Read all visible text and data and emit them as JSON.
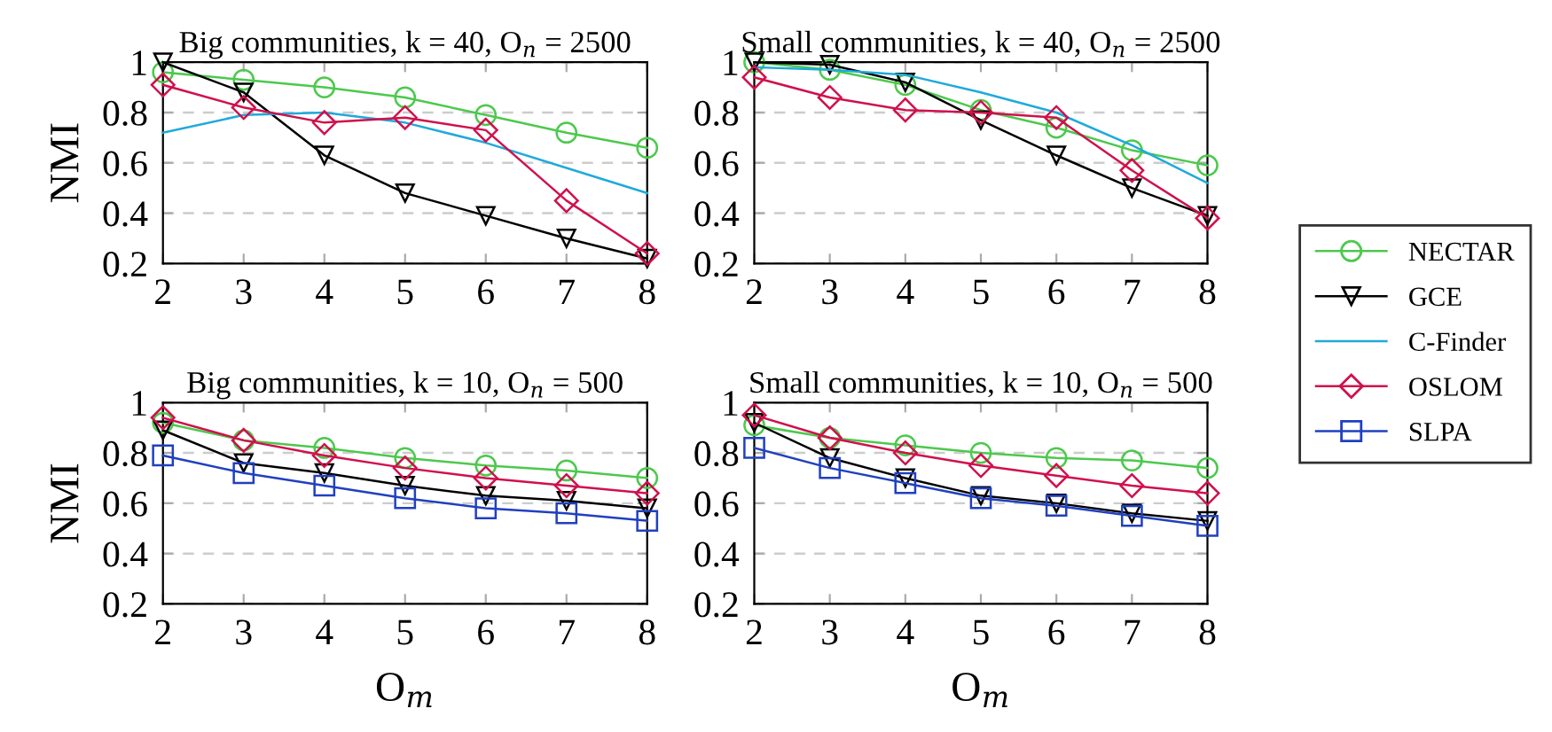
{
  "chart_data": [
    {
      "type": "line",
      "title": "Big communities, k = 40, O$_{n}$ = 2500",
      "ylabel": "NMI",
      "x": [
        2,
        3,
        4,
        5,
        6,
        7,
        8
      ],
      "xlim": [
        2,
        8
      ],
      "xticks": [
        2,
        3,
        4,
        5,
        6,
        7,
        8
      ],
      "ylim": [
        0.2,
        1
      ],
      "yticks": [
        0.2,
        0.4,
        0.6,
        0.8,
        1
      ],
      "grid": "y",
      "legend": "right",
      "series": [
        {
          "name": "NECTAR",
          "color": "#4cc94c",
          "marker": "circle",
          "values": [
            0.96,
            0.93,
            0.9,
            0.86,
            0.79,
            0.72,
            0.66
          ]
        },
        {
          "name": "GCE",
          "color": "#000000",
          "marker": "triangle",
          "values": [
            1.0,
            0.88,
            0.63,
            0.48,
            0.39,
            0.3,
            0.22
          ]
        },
        {
          "name": "C-Finder",
          "color": "#1eaadc",
          "marker": "none",
          "values": [
            0.72,
            0.79,
            0.8,
            0.76,
            0.68,
            0.58,
            0.48
          ]
        },
        {
          "name": "OSLOM",
          "color": "#d0104c",
          "marker": "diamond",
          "values": [
            0.91,
            0.82,
            0.76,
            0.78,
            0.73,
            0.45,
            0.24
          ]
        }
      ]
    },
    {
      "type": "line",
      "title": "Small communities, k = 40, O$_{n}$ = 2500",
      "x": [
        2,
        3,
        4,
        5,
        6,
        7,
        8
      ],
      "xlim": [
        2,
        8
      ],
      "xticks": [
        2,
        3,
        4,
        5,
        6,
        7,
        8
      ],
      "ylim": [
        0.2,
        1
      ],
      "yticks": [
        0.2,
        0.4,
        0.6,
        0.8,
        1
      ],
      "grid": "y",
      "legend": "right",
      "series": [
        {
          "name": "NECTAR",
          "color": "#4cc94c",
          "marker": "circle",
          "values": [
            1.0,
            0.97,
            0.91,
            0.81,
            0.74,
            0.65,
            0.59
          ]
        },
        {
          "name": "GCE",
          "color": "#000000",
          "marker": "triangle",
          "values": [
            1.0,
            0.99,
            0.92,
            0.77,
            0.63,
            0.5,
            0.39
          ]
        },
        {
          "name": "C-Finder",
          "color": "#1eaadc",
          "marker": "none",
          "values": [
            0.98,
            0.97,
            0.95,
            0.88,
            0.8,
            0.67,
            0.52
          ]
        },
        {
          "name": "OSLOM",
          "color": "#d0104c",
          "marker": "diamond",
          "values": [
            0.94,
            0.86,
            0.81,
            0.8,
            0.78,
            0.57,
            0.38
          ]
        }
      ]
    },
    {
      "type": "line",
      "title": "Big communities, k = 10, O$_{n}$ = 500",
      "ylabel": "NMI",
      "xlabel": "O$_{m}$",
      "x": [
        2,
        3,
        4,
        5,
        6,
        7,
        8
      ],
      "xlim": [
        2,
        8
      ],
      "xticks": [
        2,
        3,
        4,
        5,
        6,
        7,
        8
      ],
      "ylim": [
        0.2,
        1
      ],
      "yticks": [
        0.2,
        0.4,
        0.6,
        0.8,
        1
      ],
      "grid": "y",
      "legend": "right",
      "series": [
        {
          "name": "NECTAR",
          "color": "#4cc94c",
          "marker": "circle",
          "values": [
            0.92,
            0.85,
            0.82,
            0.78,
            0.75,
            0.73,
            0.7
          ]
        },
        {
          "name": "GCE",
          "color": "#000000",
          "marker": "triangle",
          "values": [
            0.89,
            0.76,
            0.72,
            0.67,
            0.63,
            0.61,
            0.58
          ]
        },
        {
          "name": "OSLOM",
          "color": "#d0104c",
          "marker": "diamond",
          "values": [
            0.94,
            0.85,
            0.79,
            0.74,
            0.7,
            0.67,
            0.64
          ]
        },
        {
          "name": "SLPA",
          "color": "#2040c0",
          "marker": "square",
          "values": [
            0.79,
            0.72,
            0.67,
            0.62,
            0.58,
            0.56,
            0.53
          ]
        }
      ]
    },
    {
      "type": "line",
      "title": "Small communities, k = 10, O$_{n}$ = 500",
      "xlabel": "O$_{m}$",
      "x": [
        2,
        3,
        4,
        5,
        6,
        7,
        8
      ],
      "xlim": [
        2,
        8
      ],
      "xticks": [
        2,
        3,
        4,
        5,
        6,
        7,
        8
      ],
      "ylim": [
        0.2,
        1
      ],
      "yticks": [
        0.2,
        0.4,
        0.6,
        0.8,
        1
      ],
      "grid": "y",
      "legend": "right",
      "series": [
        {
          "name": "NECTAR",
          "color": "#4cc94c",
          "marker": "circle",
          "values": [
            0.91,
            0.86,
            0.83,
            0.8,
            0.78,
            0.77,
            0.74
          ]
        },
        {
          "name": "GCE",
          "color": "#000000",
          "marker": "triangle",
          "values": [
            0.92,
            0.78,
            0.7,
            0.63,
            0.6,
            0.56,
            0.53
          ]
        },
        {
          "name": "OSLOM",
          "color": "#d0104c",
          "marker": "diamond",
          "values": [
            0.95,
            0.86,
            0.8,
            0.75,
            0.71,
            0.67,
            0.64
          ]
        },
        {
          "name": "SLPA",
          "color": "#2040c0",
          "marker": "square",
          "values": [
            0.82,
            0.74,
            0.68,
            0.62,
            0.59,
            0.55,
            0.51
          ]
        }
      ]
    }
  ]
}
